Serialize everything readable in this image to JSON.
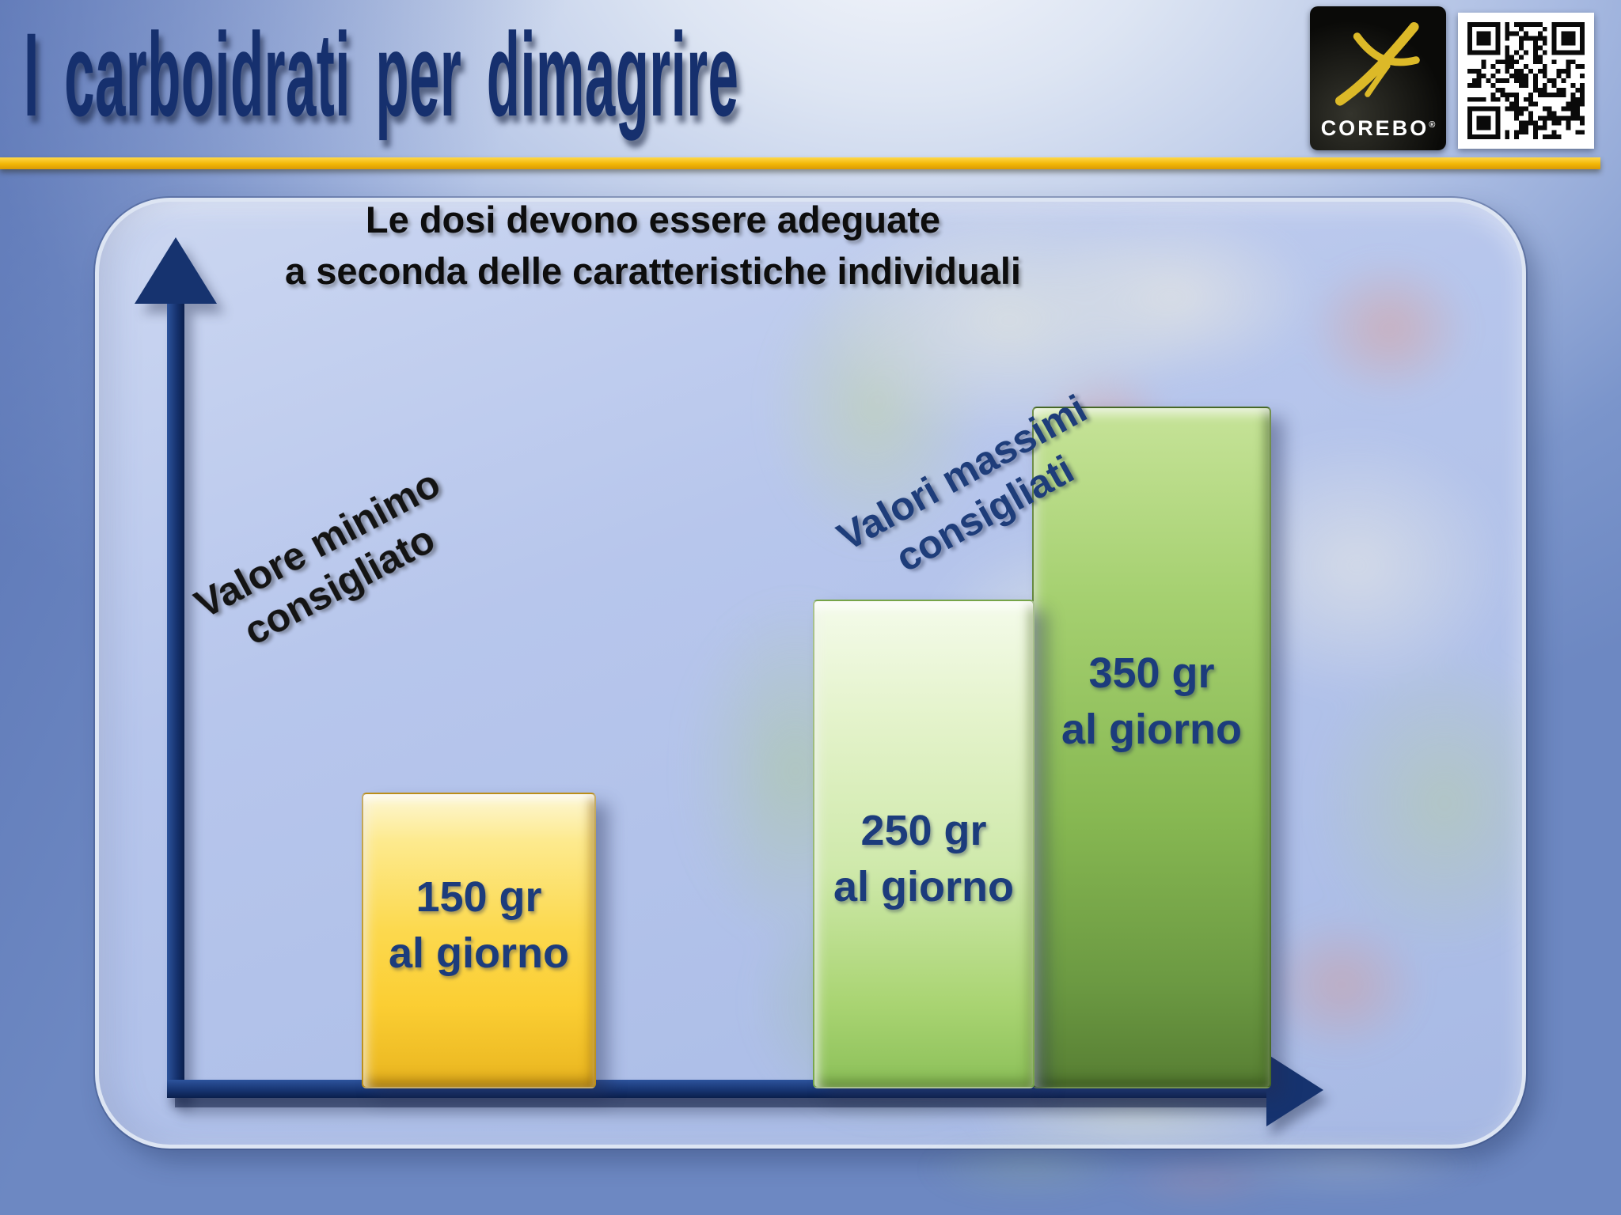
{
  "slide": {
    "title": "I carboidrati per dimagrire",
    "note_line1": "Le dosi devono essere adeguate",
    "note_line2": "a seconda delle caratteristiche individuali",
    "brand": "COREBO",
    "brand_mark": "®"
  },
  "chart": {
    "min_label_line1": "Valore minimo",
    "min_label_line2": "consigliato",
    "max_label_line1": "Valori massimi",
    "max_label_line2": "consigliati",
    "bars": [
      {
        "line1": "150 gr",
        "line2": "al giorno"
      },
      {
        "line1": "250 gr",
        "line2": "al giorno"
      },
      {
        "line1": "350 gr",
        "line2": "al giorno"
      }
    ]
  },
  "colors": {
    "title_navy": "#16306e",
    "gold_rule": "#f2b705",
    "bar_yellow": "#fbce33",
    "bar_light_green": "#cdeaa4",
    "bar_dark_green": "#85b750",
    "axis_navy": "#16336f",
    "bar_text_navy": "#1c3c7c"
  },
  "chart_data": {
    "type": "bar",
    "title": "I carboidrati per dimagrire",
    "subtitle": "Le dosi devono essere adeguate a seconda delle caratteristiche individuali",
    "categories": [
      "Valore minimo consigliato",
      "Valori massimi consigliati",
      "Valori massimi consigliati"
    ],
    "values": [
      150,
      250,
      350
    ],
    "unit": "gr al giorno",
    "bar_labels": [
      "150 gr al giorno",
      "250 gr al giorno",
      "350 gr al giorno"
    ],
    "bar_colors": [
      "#fbce33",
      "#cdeaa4",
      "#85b750"
    ],
    "xlabel": "",
    "ylabel": "",
    "grid": false,
    "legend": "none",
    "axes_style": "navy arrow axes without ticks or numeric scale"
  }
}
